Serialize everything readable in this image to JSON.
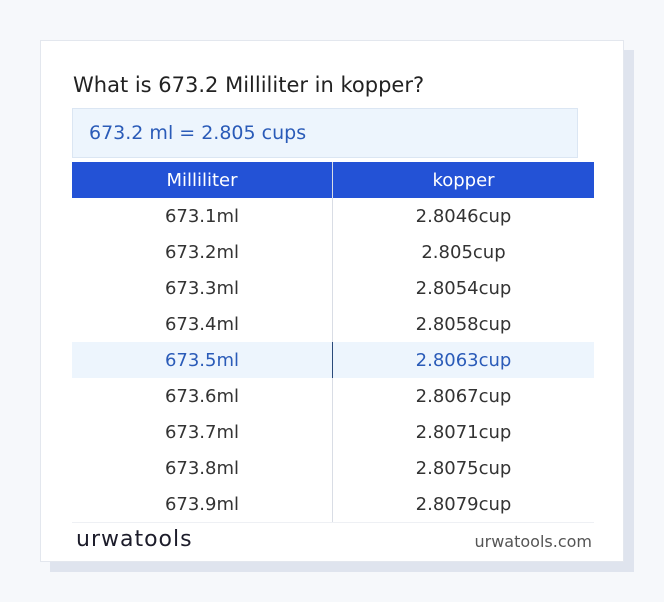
{
  "title": "What is 673.2 Milliliter in kopper?",
  "result": "673.2 ml = 2.805 cups",
  "table": {
    "headers": [
      "Milliliter",
      "kopper"
    ],
    "rows": [
      [
        "673.1ml",
        "2.8046cup"
      ],
      [
        "673.2ml",
        "2.805cup"
      ],
      [
        "673.3ml",
        "2.8054cup"
      ],
      [
        "673.4ml",
        "2.8058cup"
      ],
      [
        "673.5ml",
        "2.8063cup"
      ],
      [
        "673.6ml",
        "2.8067cup"
      ],
      [
        "673.7ml",
        "2.8071cup"
      ],
      [
        "673.8ml",
        "2.8075cup"
      ],
      [
        "673.9ml",
        "2.8079cup"
      ]
    ],
    "highlighted_row": 4
  },
  "footer": {
    "brand": "urwatools",
    "url": "urwatools.com"
  }
}
